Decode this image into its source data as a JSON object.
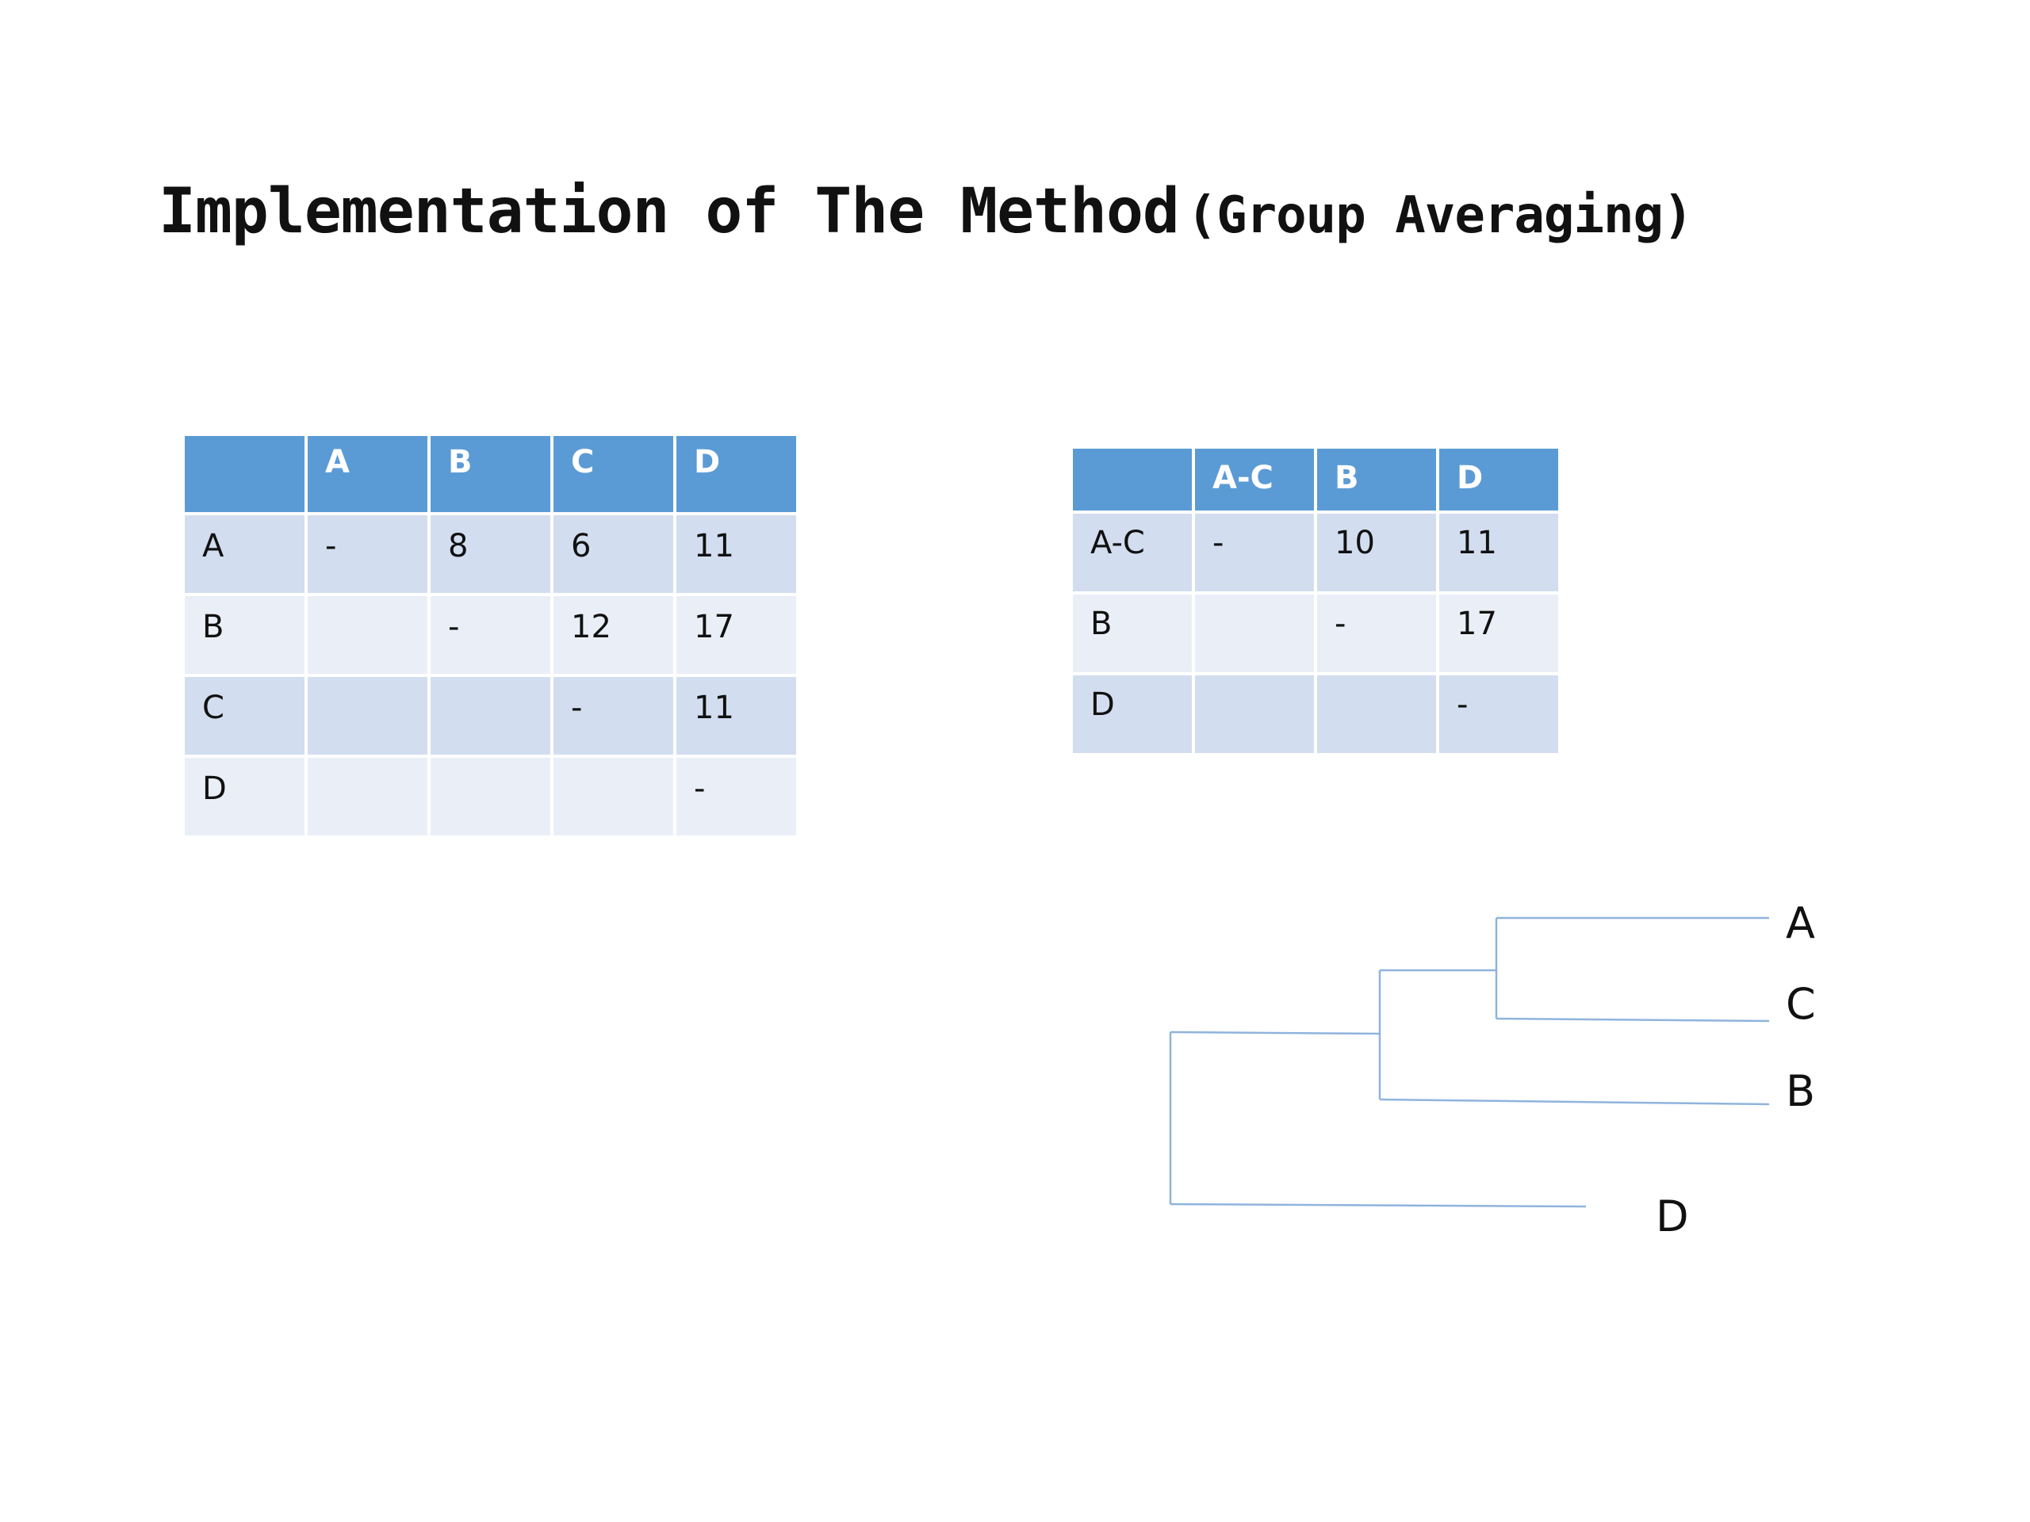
{
  "title": {
    "main": "Implementation of The Method",
    "sub": "(Group Averaging)"
  },
  "table1": {
    "columns": [
      "",
      "A",
      "B",
      "C",
      "D"
    ],
    "rows": [
      [
        "A",
        "-",
        "8",
        "6",
        "11"
      ],
      [
        "B",
        "",
        "-",
        "12",
        "17"
      ],
      [
        "C",
        "",
        "",
        "-",
        "11"
      ],
      [
        "D",
        "",
        "",
        "",
        "-"
      ]
    ]
  },
  "table2": {
    "columns": [
      "",
      "A-C",
      "B",
      "D"
    ],
    "rows": [
      [
        "A-C",
        "-",
        "10",
        "11"
      ],
      [
        "B",
        "",
        "-",
        "17"
      ],
      [
        "D",
        "",
        "",
        "-"
      ]
    ]
  },
  "dendrogram": {
    "leaves": [
      "A",
      "C",
      "B",
      "D"
    ],
    "line_color": "#8fb4dc"
  },
  "colors": {
    "header": "#5b9bd5",
    "row_dark": "#d2deef",
    "row_light": "#eaeff7"
  }
}
